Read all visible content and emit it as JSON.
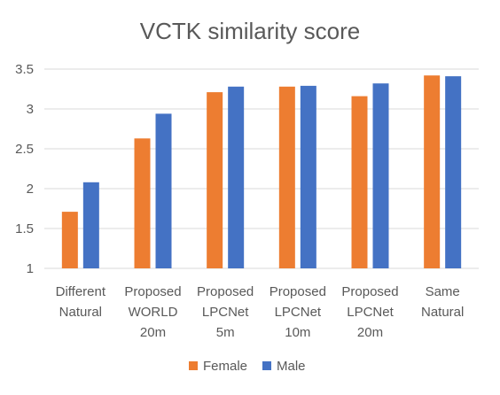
{
  "chart_data": {
    "type": "bar",
    "title": "VCTK similarity score",
    "categories": [
      [
        "Different",
        "Natural"
      ],
      [
        "Proposed",
        "WORLD",
        "20m"
      ],
      [
        "Proposed",
        "LPCNet",
        "5m"
      ],
      [
        "Proposed",
        "LPCNet",
        "10m"
      ],
      [
        "Proposed",
        "LPCNet",
        "20m"
      ],
      [
        "Same",
        "Natural"
      ]
    ],
    "series": [
      {
        "name": "Female",
        "color": "#ED7D31",
        "values": [
          1.71,
          2.63,
          3.21,
          3.28,
          3.16,
          3.42
        ]
      },
      {
        "name": "Male",
        "color": "#4472C4",
        "values": [
          2.08,
          2.94,
          3.28,
          3.29,
          3.32,
          3.41
        ]
      }
    ],
    "ylim": [
      1,
      3.5
    ],
    "yticks": [
      "1",
      "1.5",
      "2",
      "2.5",
      "3",
      "3.5"
    ],
    "grid": true,
    "legend_position": "bottom"
  }
}
